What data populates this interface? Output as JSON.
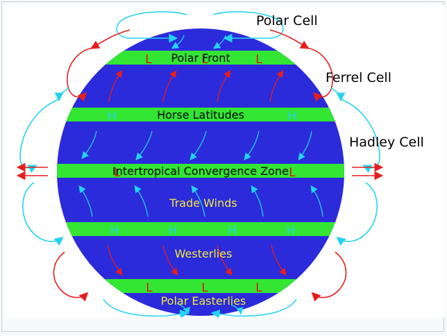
{
  "cells": {
    "polar": "Polar Cell",
    "ferrel": "Ferrel Cell",
    "hadley": "Hadley Cell"
  },
  "bands": {
    "polar_front_north": "Polar Front",
    "horse_latitudes": "Horse Latitudes",
    "itcz": "Intertropical Convergence Zone"
  },
  "winds": {
    "trade": "Trade Winds",
    "westerlies": "Westerlies",
    "polar_easterlies": "Polar Easterlies"
  },
  "pressure": {
    "low": "L",
    "high": "H"
  },
  "colors": {
    "globe": "#2b2bdb",
    "band": "#33e633",
    "low": "#e01010",
    "high": "#22d4f0",
    "wind_label": "#f2e83a",
    "red_arrow": "#e61e1e",
    "cyan_arrow": "#22d4f0"
  }
}
